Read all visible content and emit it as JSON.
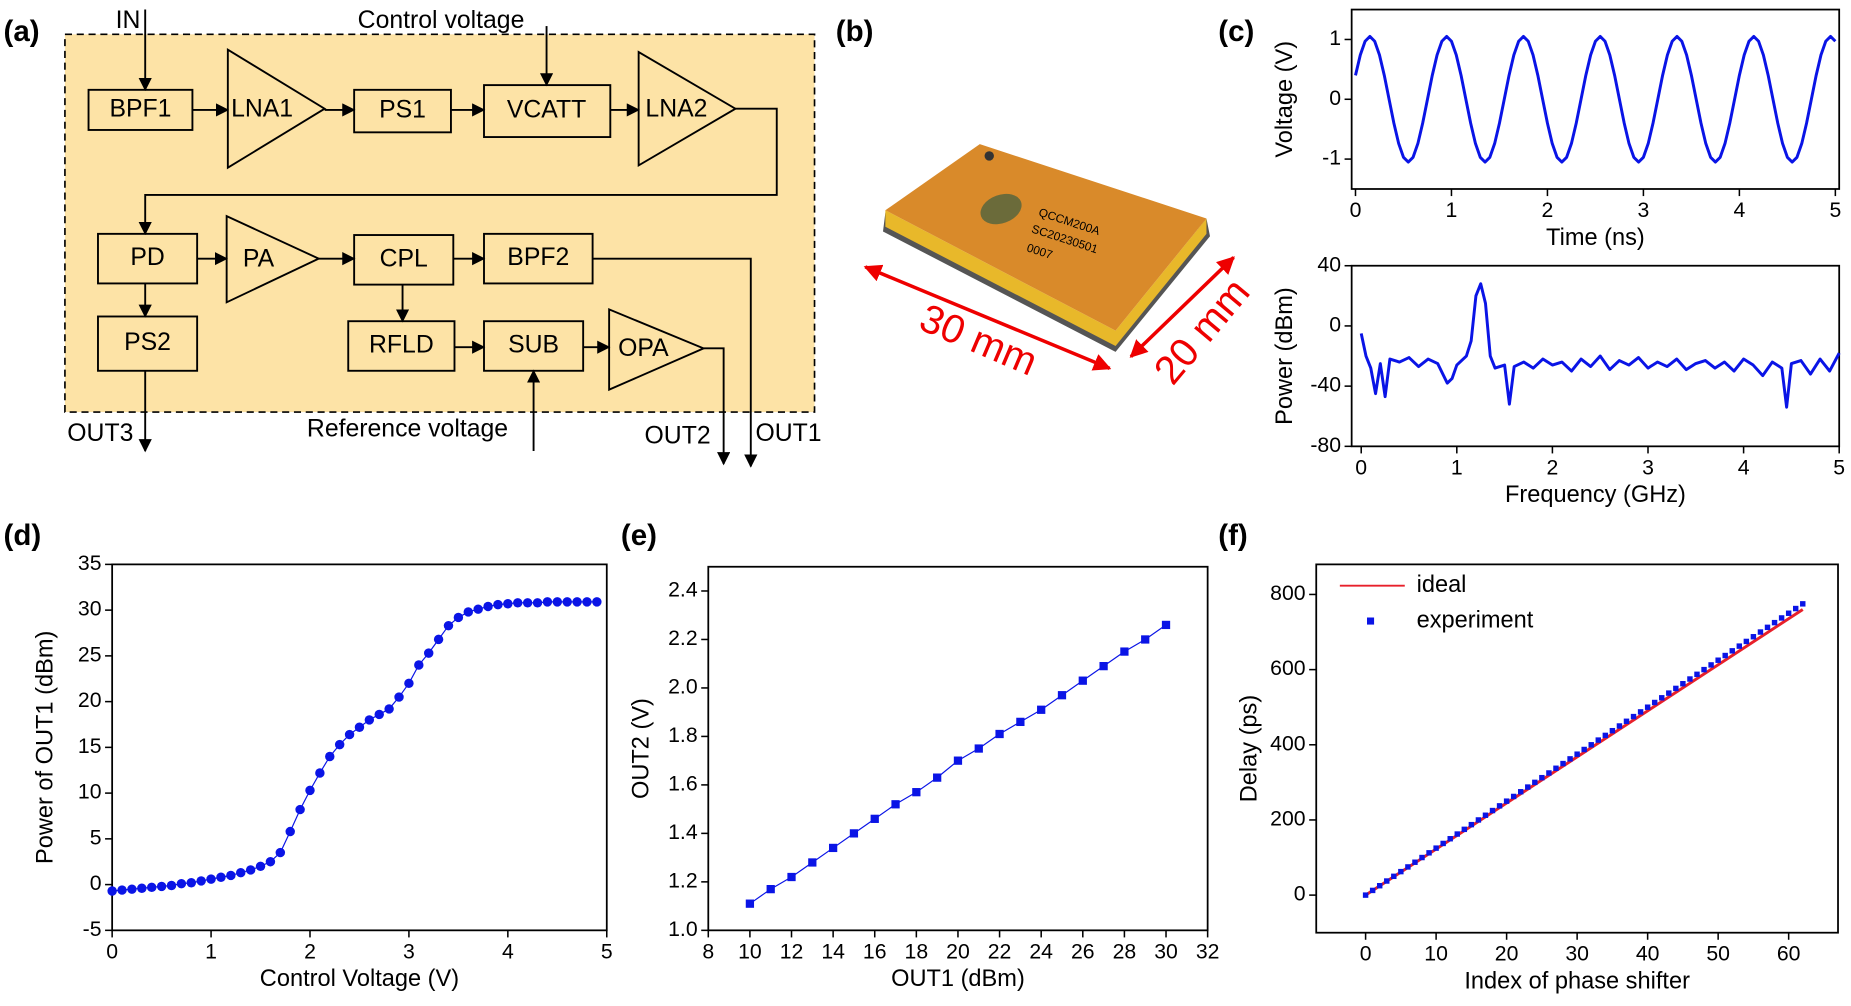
{
  "panel_labels": [
    "(a)",
    "(b)",
    "(c)",
    "(d)",
    "(e)",
    "(f)"
  ],
  "diagram": {
    "blocks": [
      "BPF1",
      "LNA1",
      "PS1",
      "VCATT",
      "LNA2",
      "PD",
      "PA",
      "CPL",
      "BPF2",
      "PS2",
      "RFLD",
      "SUB",
      "OPA"
    ],
    "signals": [
      "IN",
      "Control voltage",
      "Reference voltage",
      "OUT3",
      "OUT2",
      "OUT1"
    ]
  },
  "photo": {
    "dimensions": [
      "30 mm",
      "20 mm"
    ],
    "chip_text": [
      "QCCM200A",
      "SC20230501",
      "0007"
    ]
  },
  "chart_data": [
    {
      "type": "line",
      "x_label": "Time (ns)",
      "y_label": "Voltage (V)",
      "xlim": [
        -0.04,
        5.04
      ],
      "xticks": [
        0,
        1,
        2,
        3,
        4,
        5
      ],
      "ylim": [
        -1.5,
        1.5
      ],
      "yticks": [
        -1,
        0,
        1
      ],
      "series": [
        {
          "color": "#0a14e6",
          "x": [
            0,
            0.05,
            0.1,
            0.15,
            0.2,
            0.25,
            0.3,
            0.35,
            0.4,
            0.45,
            0.5,
            0.55,
            0.6,
            0.65,
            0.7,
            0.75,
            0.8,
            0.85,
            0.9,
            0.95,
            1,
            1.05,
            1.1,
            1.15,
            1.2,
            1.25,
            1.3,
            1.35,
            1.4,
            1.45,
            1.5,
            1.55,
            1.6,
            1.65,
            1.7,
            1.75,
            1.8,
            1.85,
            1.9,
            1.95,
            2,
            2.05,
            2.1,
            2.15,
            2.2,
            2.25,
            2.3,
            2.35,
            2.4,
            2.45,
            2.5,
            2.55,
            2.6,
            2.65,
            2.7,
            2.75,
            2.8,
            2.85,
            2.9,
            2.95,
            3,
            3.05,
            3.1,
            3.15,
            3.2,
            3.25,
            3.3,
            3.35,
            3.4,
            3.45,
            3.5,
            3.55,
            3.6,
            3.65,
            3.7,
            3.75,
            3.8,
            3.85,
            3.9,
            3.95,
            4,
            4.05,
            4.1,
            4.15,
            4.2,
            4.25,
            4.3,
            4.35,
            4.4,
            4.45,
            4.5,
            4.55,
            4.6,
            4.65,
            4.7,
            4.75,
            4.8,
            4.85,
            4.9,
            4.95,
            5
          ],
          "values": [
            0.4,
            0.74,
            0.97,
            1.05,
            0.97,
            0.74,
            0.4,
            0,
            -0.4,
            -0.74,
            -0.97,
            -1.05,
            -0.97,
            -0.74,
            -0.4,
            0,
            0.4,
            0.74,
            0.97,
            1.05,
            0.97,
            0.74,
            0.4,
            0,
            -0.4,
            -0.74,
            -0.97,
            -1.05,
            -0.97,
            -0.74,
            -0.4,
            0,
            0.4,
            0.74,
            0.97,
            1.05,
            0.97,
            0.74,
            0.4,
            0,
            -0.4,
            -0.74,
            -0.97,
            -1.05,
            -0.97,
            -0.74,
            -0.4,
            0,
            0.4,
            0.74,
            0.97,
            1.05,
            0.97,
            0.74,
            0.4,
            0,
            -0.4,
            -0.74,
            -0.97,
            -1.05,
            -0.97,
            -0.74,
            -0.4,
            0,
            0.4,
            0.74,
            0.97,
            1.05,
            0.97,
            0.74,
            0.4,
            0,
            -0.4,
            -0.74,
            -0.97,
            -1.05,
            -0.97,
            -0.74,
            -0.4,
            0,
            0.4,
            0.74,
            0.97,
            1.05,
            0.97,
            0.74,
            0.4,
            0,
            -0.4,
            -0.74,
            -0.97,
            -1.05,
            -0.97,
            -0.74,
            -0.4,
            0,
            0.4,
            0.74,
            0.97,
            1.05,
            0.97
          ]
        }
      ]
    },
    {
      "type": "line",
      "x_label": "Frequency (GHz)",
      "y_label": "Power (dBm)",
      "xlim": [
        -0.1,
        5.0
      ],
      "xticks": [
        0,
        1,
        2,
        3,
        4,
        5
      ],
      "ylim": [
        -80,
        40
      ],
      "yticks": [
        -80,
        -40,
        0,
        40
      ],
      "series": [
        {
          "color": "#0a14e6",
          "x": [
            0,
            0.05,
            0.1,
            0.15,
            0.2,
            0.25,
            0.3,
            0.4,
            0.5,
            0.6,
            0.7,
            0.8,
            0.9,
            0.95,
            1.0,
            1.1,
            1.15,
            1.2,
            1.25,
            1.3,
            1.35,
            1.4,
            1.5,
            1.55,
            1.6,
            1.7,
            1.8,
            1.9,
            2.0,
            2.1,
            2.2,
            2.3,
            2.4,
            2.5,
            2.6,
            2.7,
            2.8,
            2.9,
            3.0,
            3.1,
            3.2,
            3.3,
            3.4,
            3.5,
            3.6,
            3.7,
            3.8,
            3.9,
            4.0,
            4.1,
            4.2,
            4.3,
            4.4,
            4.45,
            4.5,
            4.6,
            4.7,
            4.8,
            4.9,
            5.0
          ],
          "values": [
            -5,
            -20,
            -28,
            -45,
            -25,
            -47,
            -22,
            -24,
            -21,
            -27,
            -22,
            -25,
            -38,
            -35,
            -26,
            -20,
            -10,
            20,
            28,
            15,
            -20,
            -28,
            -26,
            -52,
            -27,
            -24,
            -28,
            -22,
            -26,
            -24,
            -30,
            -22,
            -27,
            -20,
            -29,
            -23,
            -26,
            -21,
            -28,
            -24,
            -27,
            -22,
            -29,
            -25,
            -23,
            -28,
            -24,
            -30,
            -22,
            -26,
            -33,
            -24,
            -28,
            -54,
            -25,
            -23,
            -32,
            -22,
            -30,
            -18
          ]
        }
      ]
    },
    {
      "type": "line",
      "x_label": "Control Voltage (V)",
      "y_label": "Power of OUT1 (dBm)",
      "xlim": [
        0,
        5
      ],
      "xticks": [
        0,
        1,
        2,
        3,
        4,
        5
      ],
      "ylim": [
        -5,
        35
      ],
      "yticks": [
        -5,
        0,
        5,
        10,
        15,
        20,
        25,
        30,
        35
      ],
      "series": [
        {
          "color": "#0a14e6",
          "marker": "circle",
          "x": [
            0,
            0.1,
            0.2,
            0.3,
            0.4,
            0.5,
            0.6,
            0.7,
            0.8,
            0.9,
            1,
            1.1,
            1.2,
            1.3,
            1.4,
            1.5,
            1.6,
            1.7,
            1.8,
            1.9,
            2,
            2.1,
            2.2,
            2.3,
            2.4,
            2.5,
            2.6,
            2.7,
            2.8,
            2.9,
            3,
            3.1,
            3.2,
            3.3,
            3.4,
            3.5,
            3.6,
            3.7,
            3.8,
            3.9,
            4,
            4.1,
            4.2,
            4.3,
            4.4,
            4.5,
            4.6,
            4.7,
            4.8,
            4.9
          ],
          "values": [
            -0.7,
            -0.6,
            -0.5,
            -0.4,
            -0.3,
            -0.2,
            -0.1,
            0.1,
            0.2,
            0.4,
            0.6,
            0.8,
            1.0,
            1.3,
            1.6,
            2.0,
            2.5,
            3.5,
            5.8,
            8.2,
            10.3,
            12.2,
            14.0,
            15.3,
            16.4,
            17.2,
            18.0,
            18.6,
            19.2,
            20.5,
            22.0,
            24.0,
            25.3,
            26.8,
            28.3,
            29.2,
            29.8,
            30.1,
            30.4,
            30.6,
            30.7,
            30.8,
            30.8,
            30.8,
            30.9,
            30.9,
            30.9,
            30.9,
            30.9,
            30.9
          ]
        }
      ]
    },
    {
      "type": "line",
      "x_label": "OUT1 (dBm)",
      "y_label": "OUT2 (V)",
      "xlim": [
        8,
        32
      ],
      "xticks": [
        8,
        10,
        12,
        14,
        16,
        18,
        20,
        22,
        24,
        26,
        28,
        30,
        32
      ],
      "ylim": [
        1.0,
        2.5
      ],
      "yticks": [
        {
          "value": 1.0,
          "label": "1.0"
        },
        1.2,
        1.4,
        1.6,
        1.8,
        {
          "value": 2.0,
          "label": "2.0"
        },
        2.2,
        2.4
      ],
      "series": [
        {
          "color": "#0a14e6",
          "marker": "square",
          "x": [
            10,
            11,
            12,
            13,
            14,
            15,
            16,
            17,
            18,
            19,
            20,
            21,
            22,
            23,
            24,
            25,
            26,
            27,
            28,
            29,
            30
          ],
          "values": [
            1.11,
            1.17,
            1.22,
            1.28,
            1.34,
            1.4,
            1.46,
            1.52,
            1.57,
            1.63,
            1.7,
            1.75,
            1.81,
            1.86,
            1.91,
            1.97,
            2.03,
            2.09,
            2.15,
            2.2,
            2.26
          ]
        }
      ]
    },
    {
      "type": "line",
      "x_label": "Index of phase shifter",
      "y_label": "Delay (ps)",
      "xlim": [
        -7,
        67
      ],
      "xticks": [
        0,
        10,
        20,
        30,
        40,
        50,
        60
      ],
      "ylim": [
        -100,
        880
      ],
      "yticks": [
        0,
        200,
        400,
        600,
        800
      ],
      "legend": "upper left",
      "series": [
        {
          "name": "ideal",
          "color": "#e8202a",
          "x": [
            0,
            62
          ],
          "values": [
            0,
            760
          ]
        },
        {
          "name": "experiment",
          "color": "#0a14e6",
          "marker": "square",
          "line": false,
          "x": [
            0,
            1,
            2,
            3,
            4,
            5,
            6,
            7,
            8,
            9,
            10,
            11,
            12,
            13,
            14,
            15,
            16,
            17,
            18,
            19,
            20,
            21,
            22,
            23,
            24,
            25,
            26,
            27,
            28,
            29,
            30,
            31,
            32,
            33,
            34,
            35,
            36,
            37,
            38,
            39,
            40,
            41,
            42,
            43,
            44,
            45,
            46,
            47,
            48,
            49,
            50,
            51,
            52,
            53,
            54,
            55,
            56,
            57,
            58,
            59,
            60,
            61,
            62
          ],
          "values": [
            0,
            12.5,
            25,
            37.5,
            50,
            62.5,
            75,
            87.5,
            100,
            112.5,
            125,
            137.5,
            150,
            162.5,
            175,
            187.5,
            200,
            212.5,
            225,
            237.5,
            250,
            262.5,
            275,
            287.5,
            300,
            312.5,
            325,
            337.5,
            350,
            362.5,
            375,
            387.5,
            400,
            412.5,
            425,
            437.5,
            450,
            462.5,
            475,
            487.5,
            500,
            512.5,
            525,
            537.5,
            550,
            562.5,
            575,
            587.5,
            600,
            612.5,
            625,
            637.5,
            650,
            662.5,
            675,
            687.5,
            700,
            712.5,
            725,
            737.5,
            750,
            762.5,
            775
          ]
        }
      ]
    }
  ]
}
